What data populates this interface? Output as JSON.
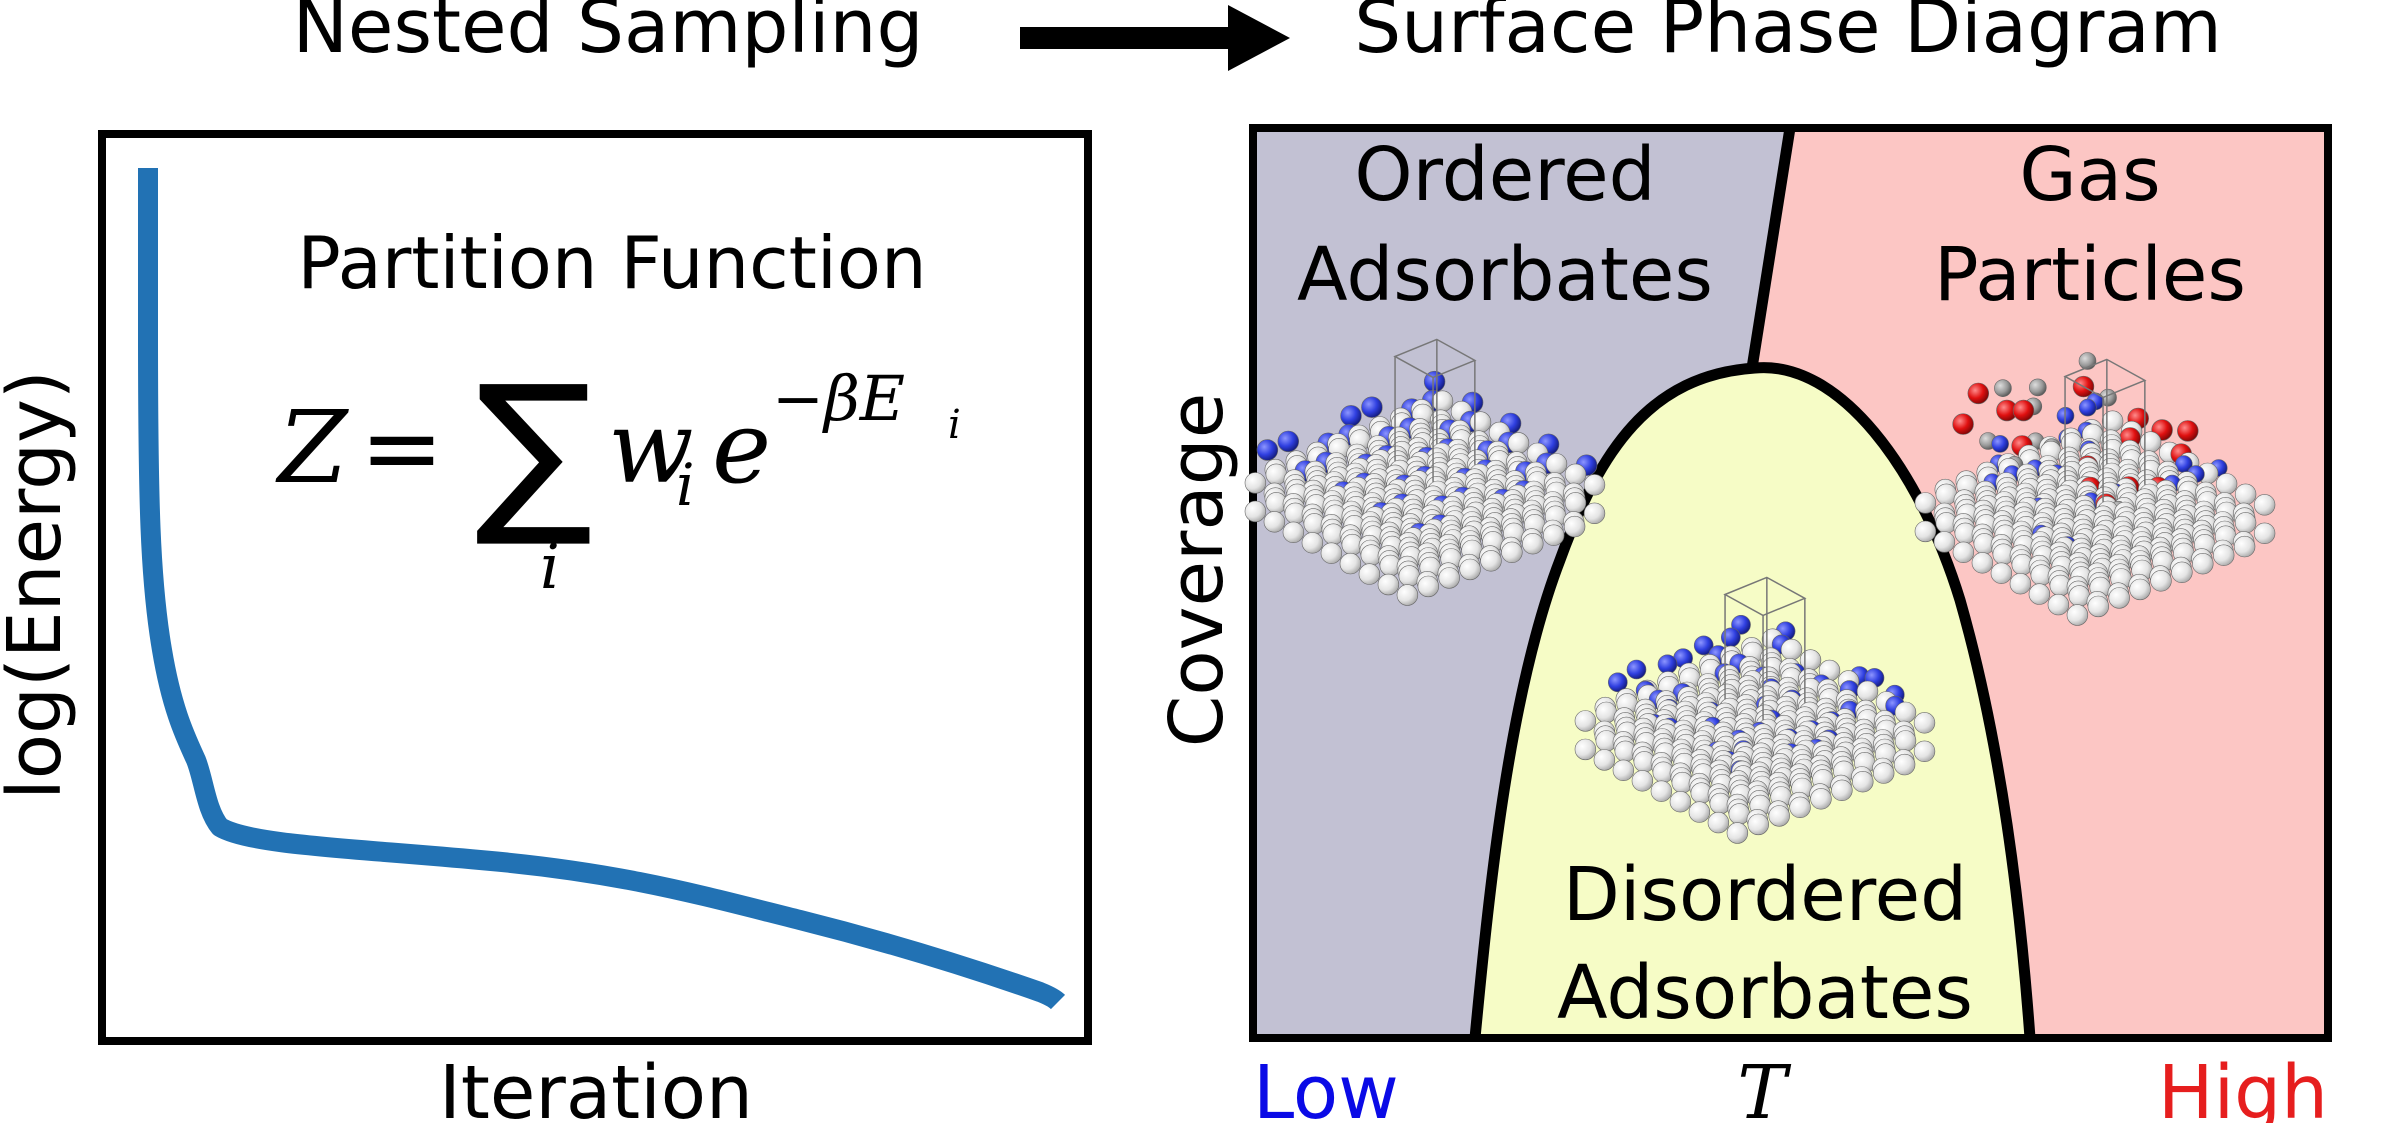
{
  "header": {
    "left_title": "Nested Sampling",
    "right_title": "Surface Phase Diagram",
    "arrow_icon": "right-arrow-icon"
  },
  "left_panel": {
    "y_label": "log(Energy)",
    "x_label": "Iteration",
    "formula_title": "Partition Function",
    "formula": {
      "lhs": "Z",
      "equals": "=",
      "sum": "∑",
      "sum_index": "i",
      "weight": "w",
      "weight_sub": "i",
      "exp_base": "e",
      "exponent": "−βE",
      "exponent_sub": "i"
    },
    "curve_color": "#2272b4"
  },
  "right_panel": {
    "y_label": "Coverage",
    "x_axis": {
      "low": "Low",
      "mid": "T",
      "high": "High",
      "low_color": "#0a0ae6",
      "high_color": "#e61e1e"
    },
    "regions": {
      "ordered": {
        "line1": "Ordered",
        "line2": "Adsorbates",
        "color": "#c2c1d3"
      },
      "gas": {
        "line1": "Gas",
        "line2": "Particles",
        "color": "#fcc6c4"
      },
      "disordered": {
        "line1": "Disordered",
        "line2": "Adsorbates",
        "color": "#f6fcc6"
      }
    },
    "atom_colors": {
      "substrate": "#e9e9e9",
      "adsorbate": "#2f3fe0",
      "oxygen": "#e01010",
      "gray": "#999999"
    }
  }
}
